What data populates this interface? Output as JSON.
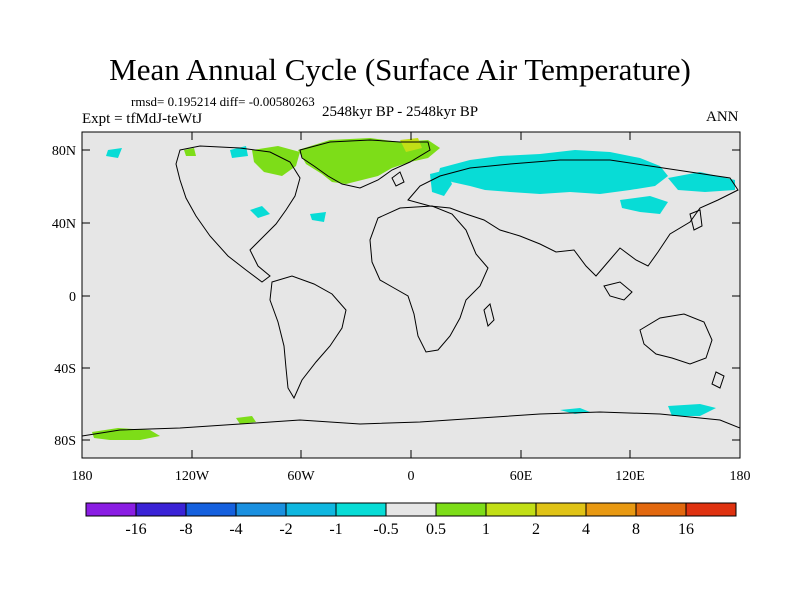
{
  "title": "Mean Annual Cycle (Surface Air Temperature)",
  "stats": "rmsd= 0.195214 diff= -0.00580263",
  "experiment": "Expt = tfMdJ-teWtJ",
  "period": "2548kyr BP - 2548kyr BP",
  "season": "ANN",
  "lat_ticks": [
    "80N",
    "40N",
    "0",
    "40S",
    "80S"
  ],
  "lon_ticks": [
    "180",
    "120W",
    "60W",
    "0",
    "60E",
    "120E",
    "180"
  ],
  "colorbar": {
    "colors": [
      "#8a1de3",
      "#3a22d6",
      "#1560de",
      "#1a90e0",
      "#0fb7e0",
      "#08dcd6",
      "#e6e6e6",
      "#7ddd18",
      "#c2df16",
      "#e0c316",
      "#e89912",
      "#e2680e",
      "#df3210"
    ],
    "labels": [
      "-16",
      "-8",
      "-4",
      "-2",
      "-1",
      "-0.5",
      "0.5",
      "1",
      "2",
      "4",
      "8",
      "16"
    ]
  },
  "colors": {
    "background": "#e6e6e6",
    "cool": "#08dcd6",
    "warm": "#7ddd18",
    "yellow": "#c2df16"
  }
}
